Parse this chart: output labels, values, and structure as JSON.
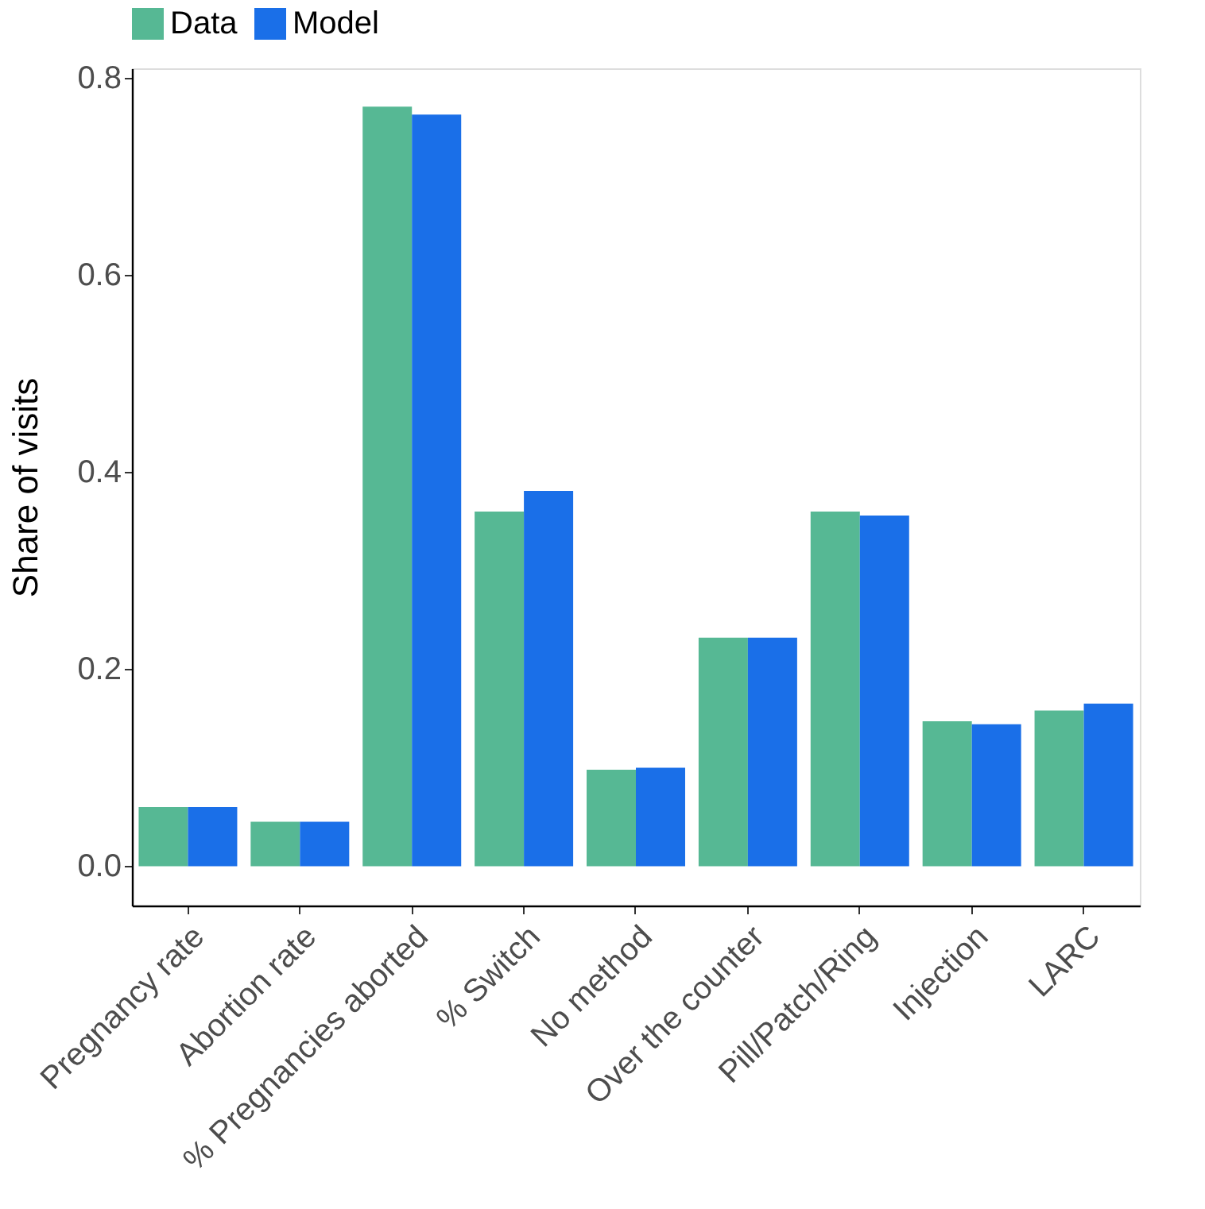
{
  "chart_data": {
    "type": "bar",
    "ylabel": "Share of visits",
    "categories": [
      "Pregnancy rate",
      "Abortion rate",
      "% Pregnancies aborted",
      "% Switch",
      "No method",
      "Over the counter",
      "Pill/Patch/Ring",
      "Injection",
      "LARC"
    ],
    "series": [
      {
        "name": "Data",
        "color": "#56b894",
        "values": [
          0.06,
          0.045,
          0.771,
          0.36,
          0.098,
          0.232,
          0.36,
          0.147,
          0.158
        ]
      },
      {
        "name": "Model",
        "color": "#1a6fe8",
        "values": [
          0.06,
          0.045,
          0.763,
          0.381,
          0.1,
          0.232,
          0.356,
          0.144,
          0.165
        ]
      }
    ],
    "ylim": [
      -0.04,
      0.81
    ],
    "yticks": [
      {
        "value": 0,
        "label": "0.0"
      },
      {
        "value": 0.2,
        "label": "0.2"
      },
      {
        "value": 0.4,
        "label": "0.4"
      },
      {
        "value": 0.6,
        "label": "0.6"
      },
      {
        "value": 0.8,
        "label": "0.8"
      }
    ],
    "grid": false,
    "legend": "top"
  }
}
